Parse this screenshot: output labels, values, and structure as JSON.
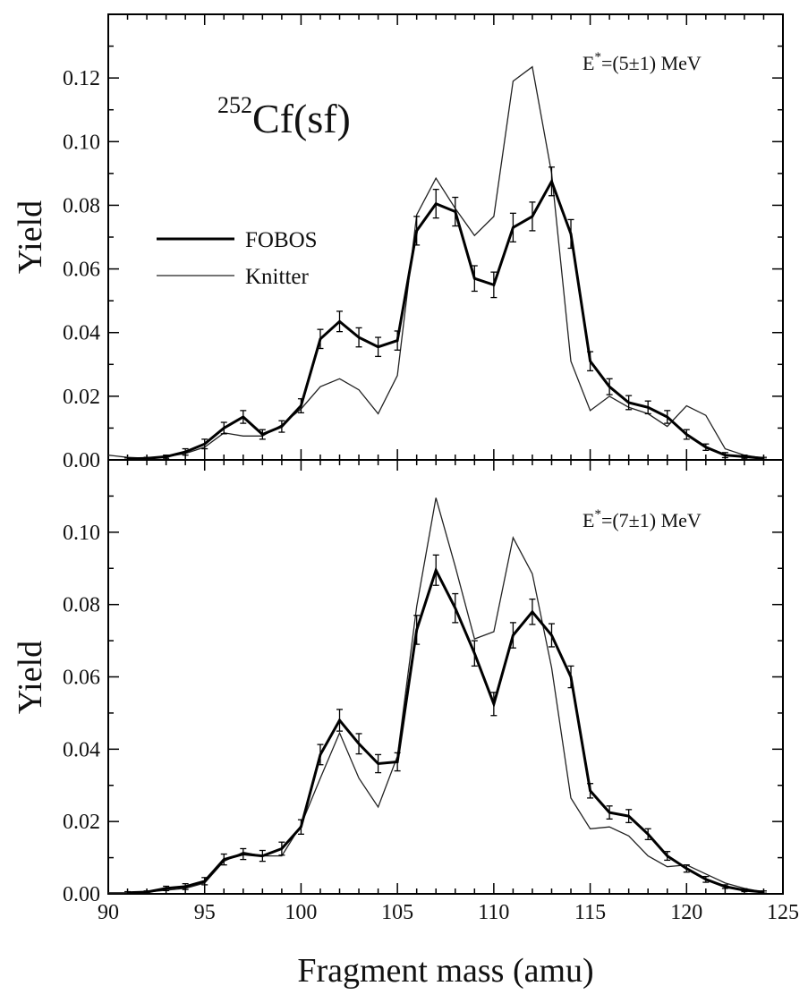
{
  "chart_data": {
    "type": "line",
    "xlabel": "Fragment mass (amu)",
    "xlim": [
      90,
      125
    ],
    "x_ticks": [
      "90",
      "95",
      "100",
      "105",
      "110",
      "115",
      "120",
      "125"
    ],
    "legend": {
      "placement": "upper-left of top panel",
      "entries": [
        "FOBOS",
        "Knitter"
      ]
    },
    "panels": [
      {
        "ylabel": "Yield",
        "ylim": [
          0,
          0.14
        ],
        "y_ticks": [
          "0.00",
          "0.02",
          "0.04",
          "0.06",
          "0.08",
          "0.10",
          "0.12"
        ],
        "annotation": {
          "base": "E",
          "sup": "*",
          "rest": "=(5±1) MeV"
        },
        "title": {
          "sup": "252",
          "text": "Cf(sf)"
        },
        "series": [
          {
            "name": "FOBOS",
            "x": [
              91,
              92,
              93,
              94,
              95,
              96,
              97,
              98,
              99,
              100,
              101,
              102,
              103,
              104,
              105,
              106,
              107,
              108,
              109,
              110,
              111,
              112,
              113,
              114,
              115,
              116,
              117,
              118,
              119,
              120,
              121,
              122,
              123,
              124
            ],
            "y": [
              0.0003,
              0.0005,
              0.001,
              0.0025,
              0.005,
              0.01,
              0.0135,
              0.008,
              0.0105,
              0.017,
              0.038,
              0.0435,
              0.0385,
              0.0355,
              0.0375,
              0.072,
              0.0805,
              0.078,
              0.057,
              0.055,
              0.073,
              0.0765,
              0.0875,
              0.071,
              0.031,
              0.023,
              0.018,
              0.0165,
              0.0135,
              0.008,
              0.004,
              0.0015,
              0.001,
              0.0005
            ],
            "err": [
              0.0003,
              0.0003,
              0.0005,
              0.001,
              0.0015,
              0.0018,
              0.002,
              0.0015,
              0.0018,
              0.0022,
              0.003,
              0.0032,
              0.003,
              0.003,
              0.003,
              0.0045,
              0.0045,
              0.0045,
              0.004,
              0.004,
              0.0045,
              0.0045,
              0.0045,
              0.0045,
              0.003,
              0.0025,
              0.0022,
              0.002,
              0.002,
              0.0015,
              0.001,
              0.0008,
              0.0005,
              0.0003
            ]
          },
          {
            "name": "Knitter",
            "x": [
              90,
              91,
              92,
              93,
              94,
              95,
              96,
              97,
              98,
              99,
              100,
              101,
              102,
              103,
              104,
              105,
              106,
              107,
              108,
              109,
              110,
              111,
              112,
              113,
              114,
              115,
              116,
              117,
              118,
              119,
              120,
              121,
              122,
              123,
              124
            ],
            "y": [
              0.0015,
              0.0008,
              0.0005,
              0.001,
              0.002,
              0.004,
              0.0085,
              0.0075,
              0.0075,
              0.011,
              0.016,
              0.023,
              0.0255,
              0.022,
              0.0145,
              0.0265,
              0.077,
              0.0885,
              0.079,
              0.0705,
              0.0765,
              0.119,
              0.1235,
              0.09,
              0.031,
              0.0155,
              0.02,
              0.0165,
              0.0145,
              0.0105,
              0.017,
              0.014,
              0.0035,
              0.0015,
              0.0005
            ]
          }
        ]
      },
      {
        "ylabel": "Yield",
        "ylim": [
          0,
          0.12
        ],
        "y_ticks": [
          "0.00",
          "0.02",
          "0.04",
          "0.06",
          "0.08",
          "0.10"
        ],
        "annotation": {
          "base": "E",
          "sup": "*",
          "rest": "=(7±1) MeV"
        },
        "series": [
          {
            "name": "FOBOS",
            "x": [
              91,
              92,
              93,
              94,
              95,
              96,
              97,
              98,
              99,
              100,
              101,
              102,
              103,
              104,
              105,
              106,
              107,
              108,
              109,
              110,
              111,
              112,
              113,
              114,
              115,
              116,
              117,
              118,
              119,
              120,
              121,
              122,
              123,
              124
            ],
            "y": [
              0.0003,
              0.0005,
              0.0015,
              0.002,
              0.0035,
              0.0095,
              0.011,
              0.0105,
              0.0125,
              0.0185,
              0.0385,
              0.048,
              0.0415,
              0.036,
              0.0365,
              0.073,
              0.0895,
              0.079,
              0.0665,
              0.0525,
              0.0715,
              0.078,
              0.0715,
              0.06,
              0.0285,
              0.0225,
              0.0215,
              0.0165,
              0.0105,
              0.007,
              0.004,
              0.002,
              0.001,
              0.0005
            ],
            "err": [
              0.0003,
              0.0003,
              0.0006,
              0.0008,
              0.001,
              0.0015,
              0.0015,
              0.0015,
              0.0018,
              0.002,
              0.0028,
              0.003,
              0.0028,
              0.0025,
              0.0025,
              0.004,
              0.0042,
              0.004,
              0.0035,
              0.0032,
              0.0035,
              0.0035,
              0.0032,
              0.003,
              0.002,
              0.0018,
              0.0018,
              0.0015,
              0.0012,
              0.001,
              0.0008,
              0.0005,
              0.0004,
              0.0003
            ]
          },
          {
            "name": "Knitter",
            "x": [
              90,
              91,
              92,
              93,
              94,
              95,
              96,
              97,
              98,
              99,
              100,
              101,
              102,
              103,
              104,
              105,
              106,
              107,
              108,
              109,
              110,
              111,
              112,
              113,
              114,
              115,
              116,
              117,
              118,
              119,
              120,
              121,
              122,
              123,
              124
            ],
            "y": [
              0.0003,
              0.0003,
              0.0005,
              0.001,
              0.0015,
              0.003,
              0.009,
              0.0115,
              0.0105,
              0.0105,
              0.019,
              0.032,
              0.0445,
              0.032,
              0.024,
              0.038,
              0.0795,
              0.1095,
              0.0905,
              0.0705,
              0.0725,
              0.0985,
              0.0885,
              0.0625,
              0.0265,
              0.018,
              0.0185,
              0.016,
              0.0105,
              0.0075,
              0.008,
              0.0055,
              0.003,
              0.0015,
              0.0005
            ]
          }
        ]
      }
    ]
  }
}
